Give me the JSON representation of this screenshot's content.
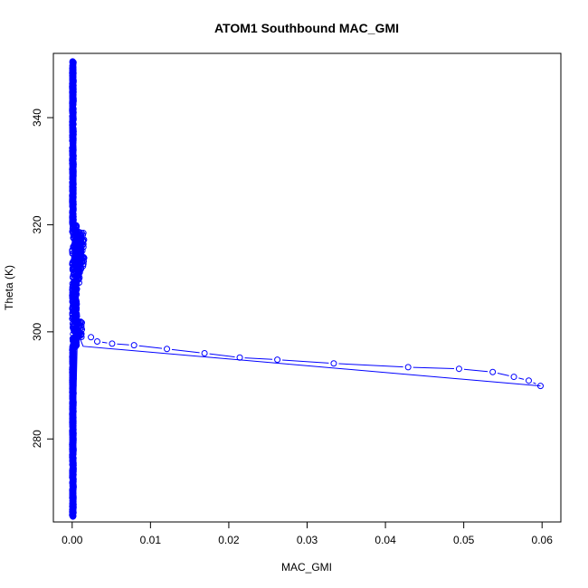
{
  "chart_data": {
    "type": "scatter",
    "title": "ATOM1 Southbound MAC_GMI",
    "xlabel": "MAC_GMI",
    "ylabel": "Theta (K)",
    "xlim": [
      -0.0024,
      0.0624
    ],
    "ylim": [
      264.5,
      352.0
    ],
    "x_ticks": [
      "0.00",
      "0.01",
      "0.02",
      "0.03",
      "0.04",
      "0.05",
      "0.06"
    ],
    "y_ticks": [
      "280",
      "300",
      "320",
      "340"
    ],
    "series_color": "#0000ff",
    "marker": "open-circle",
    "grid": false,
    "legend": "none",
    "descent_profile": {
      "x": [
        0.0024,
        0.0032,
        0.0051,
        0.0079,
        0.0121,
        0.0169,
        0.0214,
        0.0262,
        0.0334,
        0.0429,
        0.0494,
        0.0537,
        0.0564,
        0.0583,
        0.0598
      ],
      "y": [
        299.0,
        298.2,
        297.8,
        297.5,
        296.8,
        296.0,
        295.2,
        294.8,
        294.1,
        293.4,
        293.1,
        292.5,
        291.6,
        290.9,
        289.9
      ]
    },
    "return_line": {
      "x": [
        0.0598,
        0.0014,
        0.0008
      ],
      "y": [
        289.9,
        297.3,
        299.5
      ]
    },
    "near_zero_cluster": {
      "x_range": [
        0.0,
        0.0016
      ],
      "y_range": [
        265.5,
        350.5
      ]
    }
  }
}
